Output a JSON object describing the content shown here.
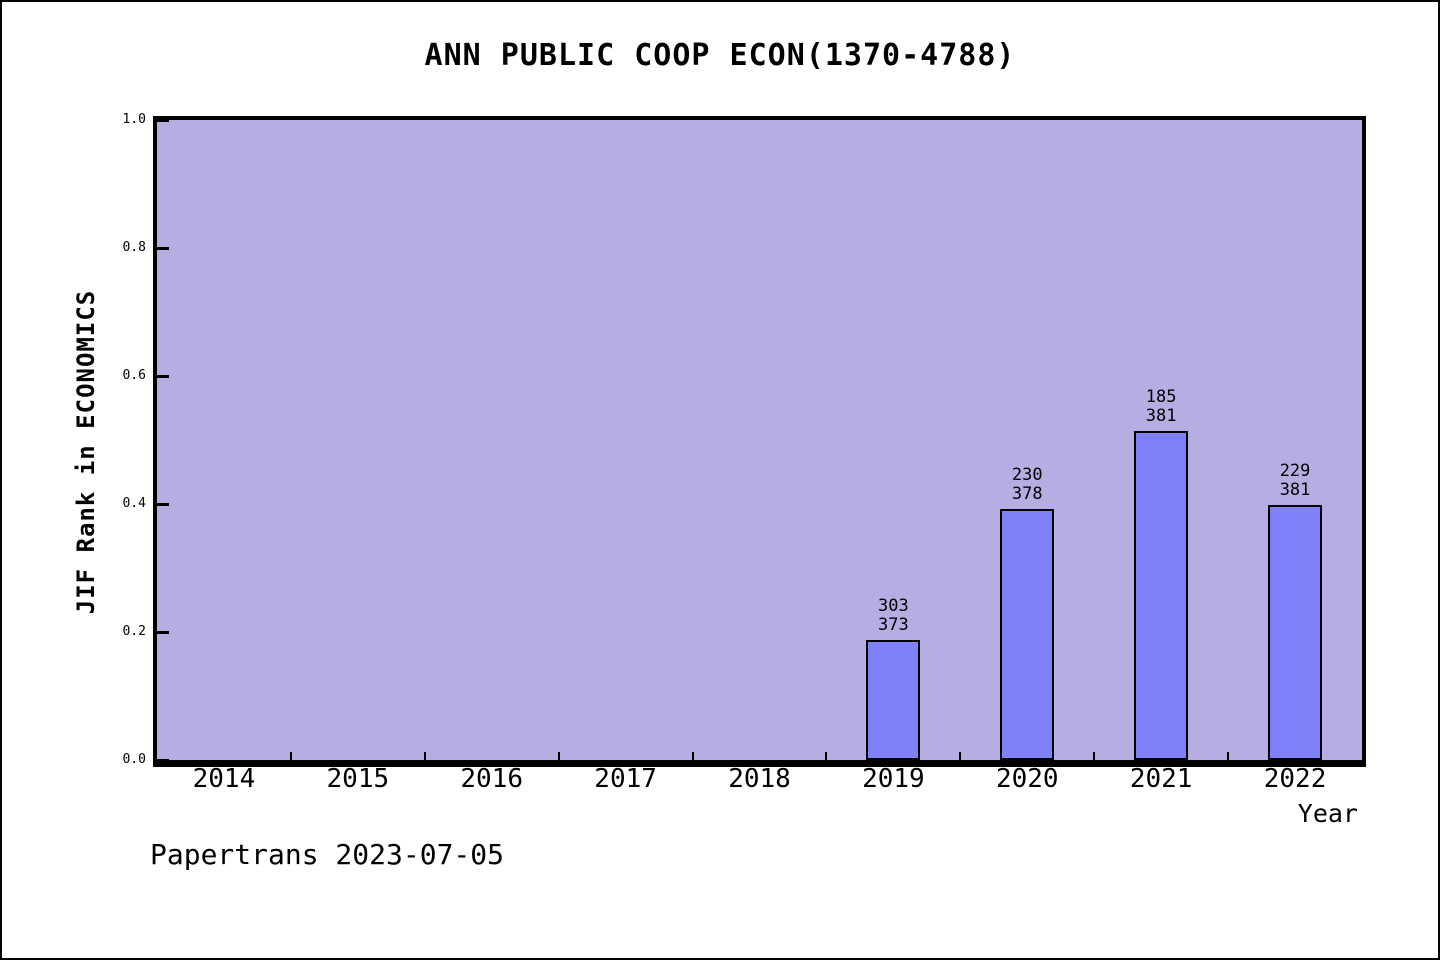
{
  "chart_data": {
    "type": "bar",
    "title": "ANN PUBLIC COOP ECON(1370-4788)",
    "xlabel": "Year",
    "ylabel": "JIF Rank in ECONOMICS",
    "ylim": [
      0.0,
      1.0
    ],
    "ytick_labels": [
      "0.0",
      "0.2",
      "0.4",
      "0.6",
      "0.8",
      "1.0"
    ],
    "grid": "off",
    "legend_position": "none",
    "categories": [
      "2014",
      "2015",
      "2016",
      "2017",
      "2018",
      "2019",
      "2020",
      "2021",
      "2022"
    ],
    "bars": [
      {
        "category": "2019",
        "numerator": 303,
        "denominator": 373,
        "value": 0.188
      },
      {
        "category": "2020",
        "numerator": 230,
        "denominator": 378,
        "value": 0.392
      },
      {
        "category": "2021",
        "numerator": 185,
        "denominator": 381,
        "value": 0.514
      },
      {
        "category": "2022",
        "numerator": 229,
        "denominator": 381,
        "value": 0.399
      }
    ],
    "colors": {
      "plot_background": "#b6aee2",
      "bar_fill": "#8080f8",
      "bar_border": "#000000",
      "axis": "#000000",
      "text": "#000000"
    }
  },
  "footer": {
    "text": "Papertrans 2023-07-05"
  }
}
